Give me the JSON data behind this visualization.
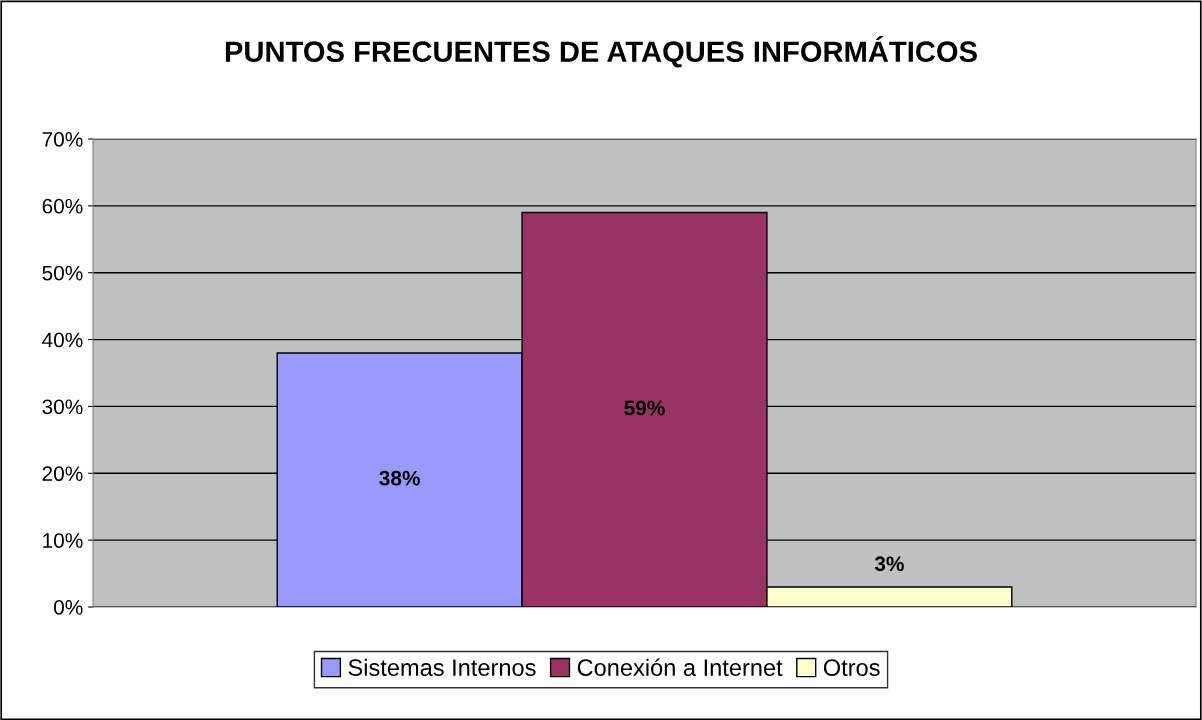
{
  "chart_data": {
    "type": "bar",
    "title": "PUNTOS FRECUENTES DE ATAQUES INFORMÁTICOS",
    "categories": [
      null
    ],
    "series": [
      {
        "name": "Sistemas Internos",
        "color": "#9999ff",
        "values": [
          38
        ],
        "value_labels": [
          "38%"
        ]
      },
      {
        "name": "Conexión a Internet",
        "color": "#993366",
        "values": [
          59
        ],
        "value_labels": [
          "59%"
        ]
      },
      {
        "name": "Otros",
        "color": "#ffffcc",
        "values": [
          3
        ],
        "value_labels": [
          "3%"
        ]
      }
    ],
    "ylim": [
      0,
      70
    ],
    "yticks": [
      {
        "value": 0,
        "label": "0%"
      },
      {
        "value": 10,
        "label": "10%"
      },
      {
        "value": 20,
        "label": "20%"
      },
      {
        "value": 30,
        "label": "30%"
      },
      {
        "value": 40,
        "label": "40%"
      },
      {
        "value": 50,
        "label": "50%"
      },
      {
        "value": 60,
        "label": "60%"
      },
      {
        "value": 70,
        "label": "70%"
      }
    ],
    "grid": "y",
    "legend": "bottom"
  }
}
